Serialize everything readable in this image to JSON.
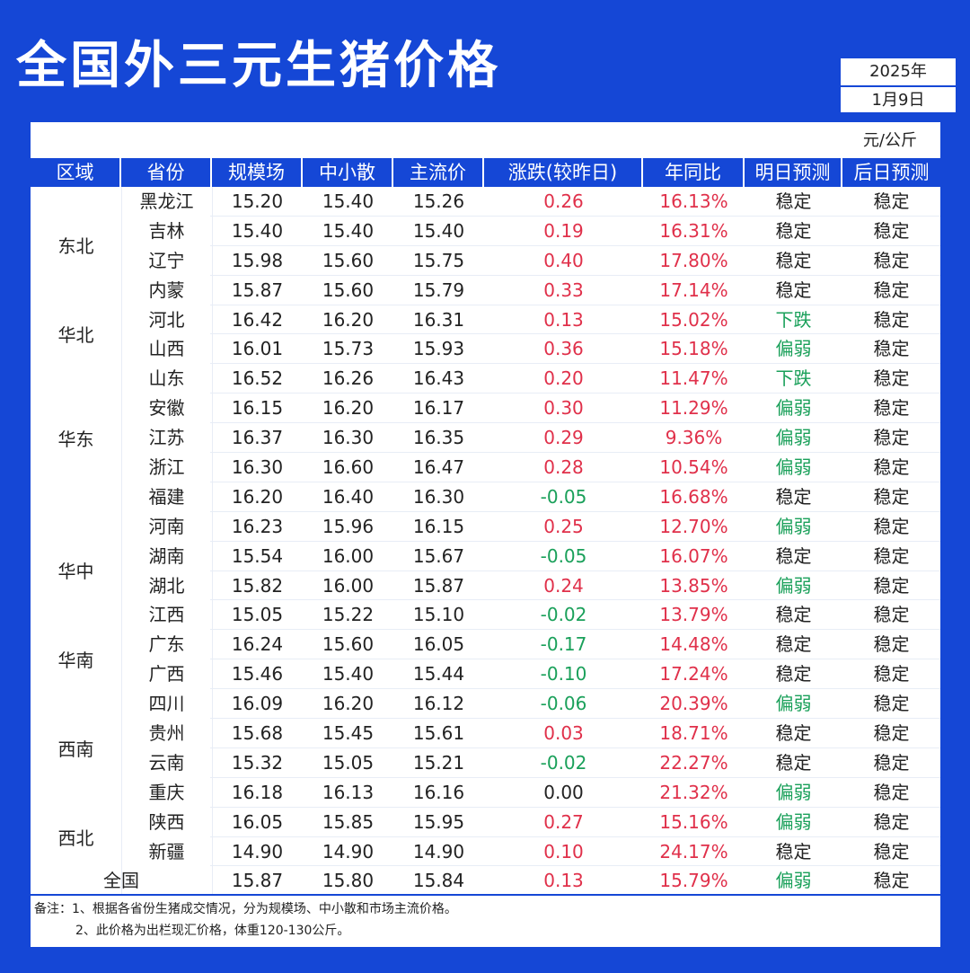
{
  "title": "全国外三元生猪价格",
  "date": {
    "year": "2025年",
    "day": "1月9日"
  },
  "unit": "元/公斤",
  "headers": [
    "区域",
    "省份",
    "规模场",
    "中小散",
    "主流价",
    "涨跌(较昨日)",
    "年同比",
    "明日预测",
    "后日预测"
  ],
  "regions": [
    "东北",
    "华北",
    "华东",
    "华中",
    "华南",
    "西南",
    "西北"
  ],
  "rows": [
    {
      "province": "黑龙江",
      "scale": "15.20",
      "small": "15.40",
      "main": "15.26",
      "change": "0.26",
      "yoy": "16.13%",
      "tomorrow": "稳定",
      "after": "稳定"
    },
    {
      "province": "吉林",
      "scale": "15.40",
      "small": "15.40",
      "main": "15.40",
      "change": "0.19",
      "yoy": "16.31%",
      "tomorrow": "稳定",
      "after": "稳定"
    },
    {
      "province": "辽宁",
      "scale": "15.98",
      "small": "15.60",
      "main": "15.75",
      "change": "0.40",
      "yoy": "17.80%",
      "tomorrow": "稳定",
      "after": "稳定"
    },
    {
      "province": "内蒙",
      "scale": "15.87",
      "small": "15.60",
      "main": "15.79",
      "change": "0.33",
      "yoy": "17.14%",
      "tomorrow": "稳定",
      "after": "稳定"
    },
    {
      "province": "河北",
      "scale": "16.42",
      "small": "16.20",
      "main": "16.31",
      "change": "0.13",
      "yoy": "15.02%",
      "tomorrow": "下跌",
      "after": "稳定"
    },
    {
      "province": "山西",
      "scale": "16.01",
      "small": "15.73",
      "main": "15.93",
      "change": "0.36",
      "yoy": "15.18%",
      "tomorrow": "偏弱",
      "after": "稳定"
    },
    {
      "province": "山东",
      "scale": "16.52",
      "small": "16.26",
      "main": "16.43",
      "change": "0.20",
      "yoy": "11.47%",
      "tomorrow": "下跌",
      "after": "稳定"
    },
    {
      "province": "安徽",
      "scale": "16.15",
      "small": "16.20",
      "main": "16.17",
      "change": "0.30",
      "yoy": "11.29%",
      "tomorrow": "偏弱",
      "after": "稳定"
    },
    {
      "province": "江苏",
      "scale": "16.37",
      "small": "16.30",
      "main": "16.35",
      "change": "0.29",
      "yoy": "9.36%",
      "tomorrow": "偏弱",
      "after": "稳定"
    },
    {
      "province": "浙江",
      "scale": "16.30",
      "small": "16.60",
      "main": "16.47",
      "change": "0.28",
      "yoy": "10.54%",
      "tomorrow": "偏弱",
      "after": "稳定"
    },
    {
      "province": "福建",
      "scale": "16.20",
      "small": "16.40",
      "main": "16.30",
      "change": "-0.05",
      "yoy": "16.68%",
      "tomorrow": "稳定",
      "after": "稳定"
    },
    {
      "province": "河南",
      "scale": "16.23",
      "small": "15.96",
      "main": "16.15",
      "change": "0.25",
      "yoy": "12.70%",
      "tomorrow": "偏弱",
      "after": "稳定"
    },
    {
      "province": "湖南",
      "scale": "15.54",
      "small": "16.00",
      "main": "15.67",
      "change": "-0.05",
      "yoy": "16.07%",
      "tomorrow": "稳定",
      "after": "稳定"
    },
    {
      "province": "湖北",
      "scale": "15.82",
      "small": "16.00",
      "main": "15.87",
      "change": "0.24",
      "yoy": "13.85%",
      "tomorrow": "偏弱",
      "after": "稳定"
    },
    {
      "province": "江西",
      "scale": "15.05",
      "small": "15.22",
      "main": "15.10",
      "change": "-0.02",
      "yoy": "13.79%",
      "tomorrow": "稳定",
      "after": "稳定"
    },
    {
      "province": "广东",
      "scale": "16.24",
      "small": "15.60",
      "main": "16.05",
      "change": "-0.17",
      "yoy": "14.48%",
      "tomorrow": "稳定",
      "after": "稳定"
    },
    {
      "province": "广西",
      "scale": "15.46",
      "small": "15.40",
      "main": "15.44",
      "change": "-0.10",
      "yoy": "17.24%",
      "tomorrow": "稳定",
      "after": "稳定"
    },
    {
      "province": "四川",
      "scale": "16.09",
      "small": "16.20",
      "main": "16.12",
      "change": "-0.06",
      "yoy": "20.39%",
      "tomorrow": "偏弱",
      "after": "稳定"
    },
    {
      "province": "贵州",
      "scale": "15.68",
      "small": "15.45",
      "main": "15.61",
      "change": "0.03",
      "yoy": "18.71%",
      "tomorrow": "稳定",
      "after": "稳定"
    },
    {
      "province": "云南",
      "scale": "15.32",
      "small": "15.05",
      "main": "15.21",
      "change": "-0.02",
      "yoy": "22.27%",
      "tomorrow": "稳定",
      "after": "稳定"
    },
    {
      "province": "重庆",
      "scale": "16.18",
      "small": "16.13",
      "main": "16.16",
      "change": "0.00",
      "yoy": "21.32%",
      "tomorrow": "偏弱",
      "after": "稳定"
    },
    {
      "province": "陕西",
      "scale": "16.05",
      "small": "15.85",
      "main": "15.95",
      "change": "0.27",
      "yoy": "15.16%",
      "tomorrow": "偏弱",
      "after": "稳定"
    },
    {
      "province": "新疆",
      "scale": "14.90",
      "small": "14.90",
      "main": "14.90",
      "change": "0.10",
      "yoy": "24.17%",
      "tomorrow": "稳定",
      "after": "稳定"
    }
  ],
  "national": {
    "label": "全国",
    "scale": "15.87",
    "small": "15.80",
    "main": "15.84",
    "change": "0.13",
    "yoy": "15.79%",
    "tomorrow": "偏弱",
    "after": "稳定"
  },
  "notes": [
    "备注：1、根据各省份生猪成交情况，分为规模场、中小散和市场主流价格。",
    "2、此价格为出栏现汇价格，体重120-130公斤。"
  ],
  "colors": {
    "brand": "#1547d6",
    "up": "#e0304a",
    "down": "#1aa05a"
  }
}
